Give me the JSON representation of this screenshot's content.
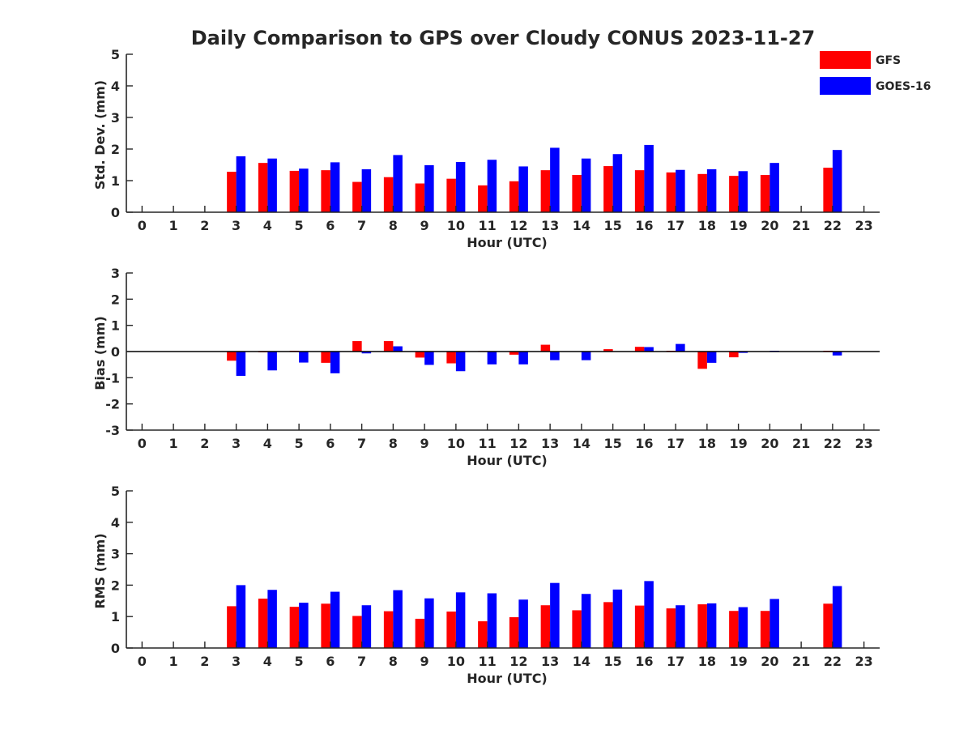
{
  "figure": {
    "title": "Daily Comparison to GPS over Cloudy CONUS 2023-11-27"
  },
  "legend": [
    {
      "name": "GFS",
      "color": "#ff0000"
    },
    {
      "name": "GOES-16",
      "color": "#0000ff"
    }
  ],
  "colors": {
    "axis": "#262626",
    "zero_line": "#000000"
  },
  "chart_data": [
    {
      "type": "bar",
      "title": "Daily Comparison to GPS over Cloudy CONUS 2023-11-27",
      "ylabel": "Std. Dev. (mm)",
      "xlabel": "Hour (UTC)",
      "ylim": [
        0,
        5
      ],
      "yticks": [
        "0",
        "1",
        "2",
        "3",
        "4",
        "5"
      ],
      "xlim": [
        -0.5,
        23.5
      ],
      "categories": [
        "0",
        "1",
        "2",
        "3",
        "4",
        "5",
        "6",
        "7",
        "8",
        "9",
        "10",
        "11",
        "12",
        "13",
        "14",
        "15",
        "16",
        "17",
        "18",
        "19",
        "20",
        "21",
        "22",
        "23"
      ],
      "series": [
        {
          "name": "GFS",
          "values": [
            null,
            null,
            null,
            1.28,
            1.56,
            1.31,
            1.33,
            0.96,
            1.11,
            0.91,
            1.06,
            0.85,
            0.98,
            1.33,
            1.18,
            1.46,
            1.33,
            1.26,
            1.21,
            1.15,
            1.18,
            null,
            1.41,
            null
          ]
        },
        {
          "name": "GOES-16",
          "values": [
            null,
            null,
            null,
            1.77,
            1.7,
            1.38,
            1.58,
            1.36,
            1.81,
            1.49,
            1.59,
            1.66,
            1.45,
            2.04,
            1.7,
            1.84,
            2.13,
            1.34,
            1.36,
            1.3,
            1.56,
            null,
            1.97,
            null
          ]
        }
      ]
    },
    {
      "type": "bar",
      "title": "",
      "ylabel": "Bias (mm)",
      "xlabel": "Hour (UTC)",
      "ylim": [
        -3,
        3
      ],
      "yticks": [
        "-3",
        "-2",
        "-1",
        "0",
        "1",
        "2",
        "3"
      ],
      "xlim": [
        -0.5,
        23.5
      ],
      "categories": [
        "0",
        "1",
        "2",
        "3",
        "4",
        "5",
        "6",
        "7",
        "8",
        "9",
        "10",
        "11",
        "12",
        "13",
        "14",
        "15",
        "16",
        "17",
        "18",
        "19",
        "20",
        "21",
        "22",
        "23"
      ],
      "series": [
        {
          "name": "GFS",
          "values": [
            null,
            null,
            null,
            -0.35,
            -0.03,
            0.03,
            -0.43,
            0.4,
            0.4,
            -0.23,
            -0.45,
            0.02,
            -0.12,
            0.26,
            0.0,
            0.09,
            0.18,
            0.03,
            -0.66,
            -0.22,
            0.0,
            null,
            0.03,
            null
          ]
        },
        {
          "name": "GOES-16",
          "values": [
            null,
            null,
            null,
            -0.93,
            -0.72,
            -0.42,
            -0.83,
            -0.07,
            0.2,
            -0.51,
            -0.75,
            -0.49,
            -0.49,
            -0.33,
            -0.33,
            0.0,
            0.17,
            0.29,
            -0.43,
            -0.05,
            0.03,
            null,
            -0.15,
            null
          ]
        }
      ]
    },
    {
      "type": "bar",
      "title": "",
      "ylabel": "RMS (mm)",
      "xlabel": "Hour (UTC)",
      "ylim": [
        0,
        5
      ],
      "yticks": [
        "0",
        "1",
        "2",
        "3",
        "4",
        "5"
      ],
      "xlim": [
        -0.5,
        23.5
      ],
      "categories": [
        "0",
        "1",
        "2",
        "3",
        "4",
        "5",
        "6",
        "7",
        "8",
        "9",
        "10",
        "11",
        "12",
        "13",
        "14",
        "15",
        "16",
        "17",
        "18",
        "19",
        "20",
        "21",
        "22",
        "23"
      ],
      "series": [
        {
          "name": "GFS",
          "values": [
            null,
            null,
            null,
            1.33,
            1.57,
            1.31,
            1.41,
            1.02,
            1.17,
            0.93,
            1.16,
            0.85,
            0.98,
            1.36,
            1.2,
            1.46,
            1.35,
            1.26,
            1.39,
            1.18,
            1.18,
            null,
            1.41,
            null
          ]
        },
        {
          "name": "GOES-16",
          "values": [
            null,
            null,
            null,
            2.0,
            1.85,
            1.44,
            1.79,
            1.36,
            1.84,
            1.58,
            1.77,
            1.74,
            1.54,
            2.07,
            1.72,
            1.86,
            2.13,
            1.36,
            1.42,
            1.3,
            1.56,
            null,
            1.97,
            null
          ]
        }
      ]
    }
  ]
}
